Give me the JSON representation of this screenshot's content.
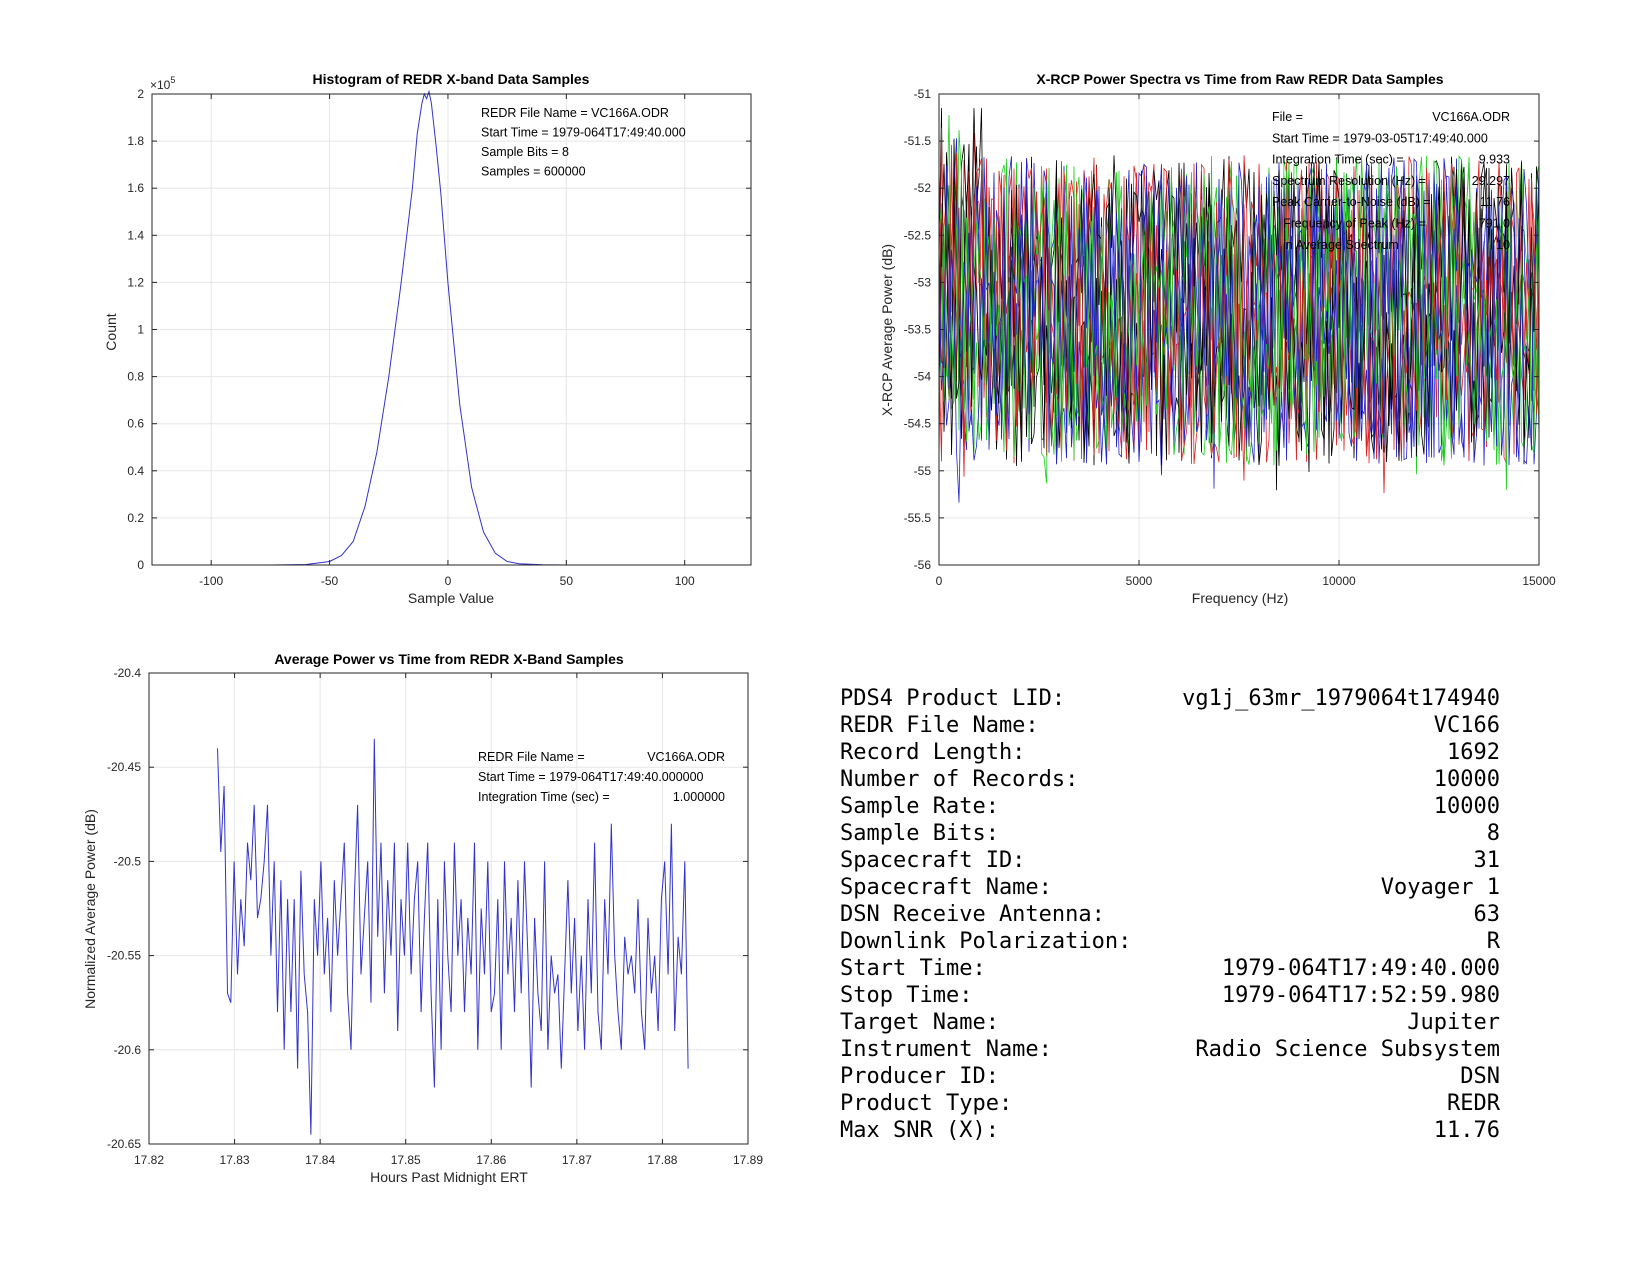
{
  "hist": {
    "title": "Histogram of REDR X-band Data Samples",
    "xlabel": "Sample Value",
    "ylabel": "Count",
    "multiplier": "×10",
    "multiplier_exp": "5",
    "xticks": [
      "-100",
      "-50",
      "0",
      "50",
      "100"
    ],
    "yticks": [
      "0",
      "0.2",
      "0.4",
      "0.6",
      "0.8",
      "1",
      "1.2",
      "1.4",
      "1.6",
      "1.8",
      "2"
    ],
    "ann": [
      "REDR File Name = VC166A.ODR",
      "Start Time = 1979-064T17:49:40.000",
      "Sample Bits = 8",
      "Samples = 600000"
    ]
  },
  "spec": {
    "title": "X-RCP Power Spectra vs Time from Raw REDR Data Samples",
    "xlabel": "Frequency (Hz)",
    "ylabel": "X-RCP Average Power (dB)",
    "xticks": [
      "0",
      "5000",
      "10000",
      "15000"
    ],
    "yticks": [
      "-51",
      "-51.5",
      "-52",
      "-52.5",
      "-53",
      "-53.5",
      "-54",
      "-54.5",
      "-55",
      "-55.5",
      "-56"
    ],
    "ann_labels": [
      "File =",
      "Start Time = 1979-03-05T17:49:40.000",
      "Integration Time (sec) =",
      "Spectrum Resolution (Hz) =",
      "Peak Carrier-to-Noise (dB) =",
      "Frequency of Peak (Hz) =",
      "in Average Spectrum"
    ],
    "ann_values": [
      "VC166A.ODR",
      "",
      "9.933",
      "29.297",
      "11.76",
      "791.0",
      "10"
    ]
  },
  "power": {
    "title": "Average Power vs Time from REDR X-Band Samples",
    "xlabel": "Hours Past Midnight ERT",
    "ylabel": "Normalized Average Power (dB)",
    "xticks": [
      "17.82",
      "17.83",
      "17.84",
      "17.85",
      "17.86",
      "17.87",
      "17.88",
      "17.89"
    ],
    "yticks": [
      "-20.4",
      "-20.45",
      "-20.5",
      "-20.55",
      "-20.6",
      "-20.65"
    ],
    "ann_labels": [
      "REDR File Name =",
      "Start Time = 1979-064T17:49:40.000000",
      "Integration Time (sec) ="
    ],
    "ann_values": [
      "VC166A.ODR",
      "",
      "1.000000"
    ]
  },
  "info": [
    {
      "label": "PDS4 Product LID:",
      "value": "vg1j_63mr_1979064t174940"
    },
    {
      "label": "REDR File Name:",
      "value": "VC166"
    },
    {
      "label": "Record Length:",
      "value": "1692"
    },
    {
      "label": "Number of Records:",
      "value": "10000"
    },
    {
      "label": "Sample Rate:",
      "value": "10000"
    },
    {
      "label": "Sample Bits:",
      "value": "8"
    },
    {
      "label": "Spacecraft ID:",
      "value": "31"
    },
    {
      "label": "Spacecraft Name:",
      "value": "Voyager 1"
    },
    {
      "label": "DSN Receive Antenna:",
      "value": "63"
    },
    {
      "label": "Downlink Polarization:",
      "value": "R"
    },
    {
      "label": "Start Time:",
      "value": "1979-064T17:49:40.000"
    },
    {
      "label": "Stop Time:",
      "value": "1979-064T17:52:59.980"
    },
    {
      "label": "Target Name:",
      "value": "Jupiter"
    },
    {
      "label": "Instrument Name:",
      "value": "Radio Science Subsystem"
    },
    {
      "label": "Producer ID:",
      "value": "DSN"
    },
    {
      "label": "Product Type:",
      "value": "REDR"
    },
    {
      "label": "Max SNR (X):",
      "value": "11.76"
    }
  ],
  "chart_data": [
    {
      "type": "line",
      "title": "Histogram of REDR X-band Data Samples",
      "xlabel": "Sample Value",
      "ylabel": "Count",
      "xlim": [
        -125,
        128
      ],
      "ylim": [
        0,
        200000
      ],
      "x": [
        -75,
        -60,
        -50,
        -45,
        -40,
        -35,
        -30,
        -25,
        -20,
        -15,
        -13,
        -11,
        -10,
        -9,
        -8,
        -7,
        -5,
        -3,
        0,
        5,
        10,
        15,
        20,
        25,
        30,
        40,
        50,
        60
      ],
      "series": [
        {
          "color": "#3333cc",
          "values": [
            0,
            200,
            1500,
            4000,
            10000,
            25000,
            48000,
            80000,
            118000,
            160000,
            183000,
            196000,
            200000,
            198000,
            201000,
            196000,
            178000,
            158000,
            120000,
            68000,
            33000,
            14000,
            5000,
            1500,
            500,
            100,
            0,
            0
          ]
        }
      ]
    },
    {
      "type": "line",
      "title": "X-RCP Power Spectra vs Time from Raw REDR Data Samples",
      "xlabel": "Frequency (Hz)",
      "ylabel": "X-RCP Average Power (dB)",
      "xlim": [
        0,
        15000
      ],
      "ylim": [
        -56,
        -51
      ],
      "noise_band": [
        -55.2,
        -51.5
      ],
      "colors": [
        "#000000",
        "#dd2222",
        "#22cc22",
        "#2222cc"
      ]
    },
    {
      "type": "line",
      "title": "Average Power vs Time from REDR X-Band Samples",
      "xlabel": "Hours Past Midnight ERT",
      "ylabel": "Normalized Average Power (dB)",
      "xlim": [
        17.82,
        17.89
      ],
      "ylim": [
        -20.65,
        -20.4
      ],
      "series": [
        {
          "color": "#3333cc",
          "x_start": 17.828,
          "x_end": 17.883,
          "values": [
            -20.44,
            -20.495,
            -20.46,
            -20.57,
            -20.575,
            -20.5,
            -20.56,
            -20.52,
            -20.545,
            -20.49,
            -20.51,
            -20.47,
            -20.53,
            -20.52,
            -20.5,
            -20.47,
            -20.55,
            -20.5,
            -20.58,
            -20.51,
            -20.6,
            -20.52,
            -20.58,
            -20.52,
            -20.61,
            -20.505,
            -20.56,
            -20.58,
            -20.645,
            -20.52,
            -20.55,
            -20.5,
            -20.56,
            -20.53,
            -20.58,
            -20.51,
            -20.55,
            -20.52,
            -20.49,
            -20.57,
            -20.6,
            -20.52,
            -20.47,
            -20.56,
            -20.53,
            -20.5,
            -20.575,
            -20.435,
            -20.54,
            -20.49,
            -20.57,
            -20.51,
            -20.55,
            -20.49,
            -20.59,
            -20.52,
            -20.55,
            -20.49,
            -20.56,
            -20.52,
            -20.5,
            -20.58,
            -20.53,
            -20.49,
            -20.57,
            -20.62,
            -20.52,
            -20.6,
            -20.5,
            -20.55,
            -20.58,
            -20.49,
            -20.55,
            -20.52,
            -20.58,
            -20.53,
            -20.56,
            -20.49,
            -20.6,
            -20.525,
            -20.56,
            -20.5,
            -20.58,
            -20.57,
            -20.52,
            -20.6,
            -20.5,
            -20.56,
            -20.53,
            -20.58,
            -20.51,
            -20.57,
            -20.5,
            -20.55,
            -20.62,
            -20.53,
            -20.57,
            -20.59,
            -20.5,
            -20.6,
            -20.55,
            -20.57,
            -20.56,
            -20.61,
            -20.56,
            -20.51,
            -20.57,
            -20.53,
            -20.59,
            -20.55,
            -20.6,
            -20.52,
            -20.57,
            -20.49,
            -20.58,
            -20.6,
            -20.52,
            -20.56,
            -20.48,
            -20.55,
            -20.58,
            -20.6,
            -20.54,
            -20.56,
            -20.55,
            -20.57,
            -20.52,
            -20.58,
            -20.6,
            -20.53,
            -20.57,
            -20.55,
            -20.59,
            -20.52,
            -20.5,
            -20.56,
            -20.48,
            -20.59,
            -20.54,
            -20.56,
            -20.5,
            -20.61
          ]
        }
      ]
    }
  ]
}
